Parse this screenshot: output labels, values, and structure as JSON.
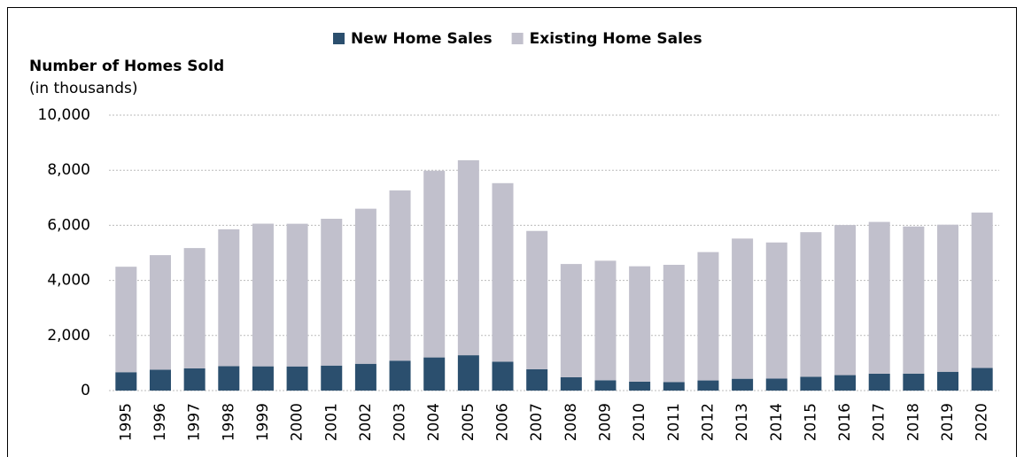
{
  "chart_data": {
    "type": "stacked_bar",
    "y_axis_title": "Number of Homes Sold",
    "y_axis_subtitle": "(in thousands)",
    "categories": [
      "1995",
      "1996",
      "1997",
      "1998",
      "1999",
      "2000",
      "2001",
      "2002",
      "2003",
      "2004",
      "2005",
      "2006",
      "2007",
      "2008",
      "2009",
      "2010",
      "2011",
      "2012",
      "2013",
      "2014",
      "2015",
      "2016",
      "2017",
      "2018",
      "2019",
      "2020"
    ],
    "series": [
      {
        "name": "New Home Sales",
        "color": "#2b4f6e",
        "values": [
          667,
          757,
          804,
          886,
          880,
          877,
          908,
          973,
          1086,
          1203,
          1283,
          1051,
          776,
          485,
          375,
          323,
          306,
          368,
          429,
          437,
          501,
          561,
          613,
          617,
          683,
          822
        ]
      },
      {
        "name": "Existing Home Sales",
        "color": "#c1c0cc",
        "values": [
          3830,
          4160,
          4370,
          4970,
          5180,
          5180,
          5330,
          5630,
          6180,
          6780,
          7080,
          6480,
          5020,
          4110,
          4340,
          4190,
          4260,
          4660,
          5090,
          4940,
          5250,
          5450,
          5510,
          5340,
          5340,
          5640
        ]
      }
    ],
    "ylim": [
      0,
      10000
    ],
    "yticks": [
      0,
      {
        "value": 2000,
        "label": "2,000"
      },
      {
        "value": 4000,
        "label": "4,000"
      },
      {
        "value": 6000,
        "label": "6,000"
      },
      {
        "value": 8000,
        "label": "8,000"
      },
      {
        "value": 10000,
        "label": "10,000"
      }
    ],
    "grid": true,
    "legend": "top"
  }
}
